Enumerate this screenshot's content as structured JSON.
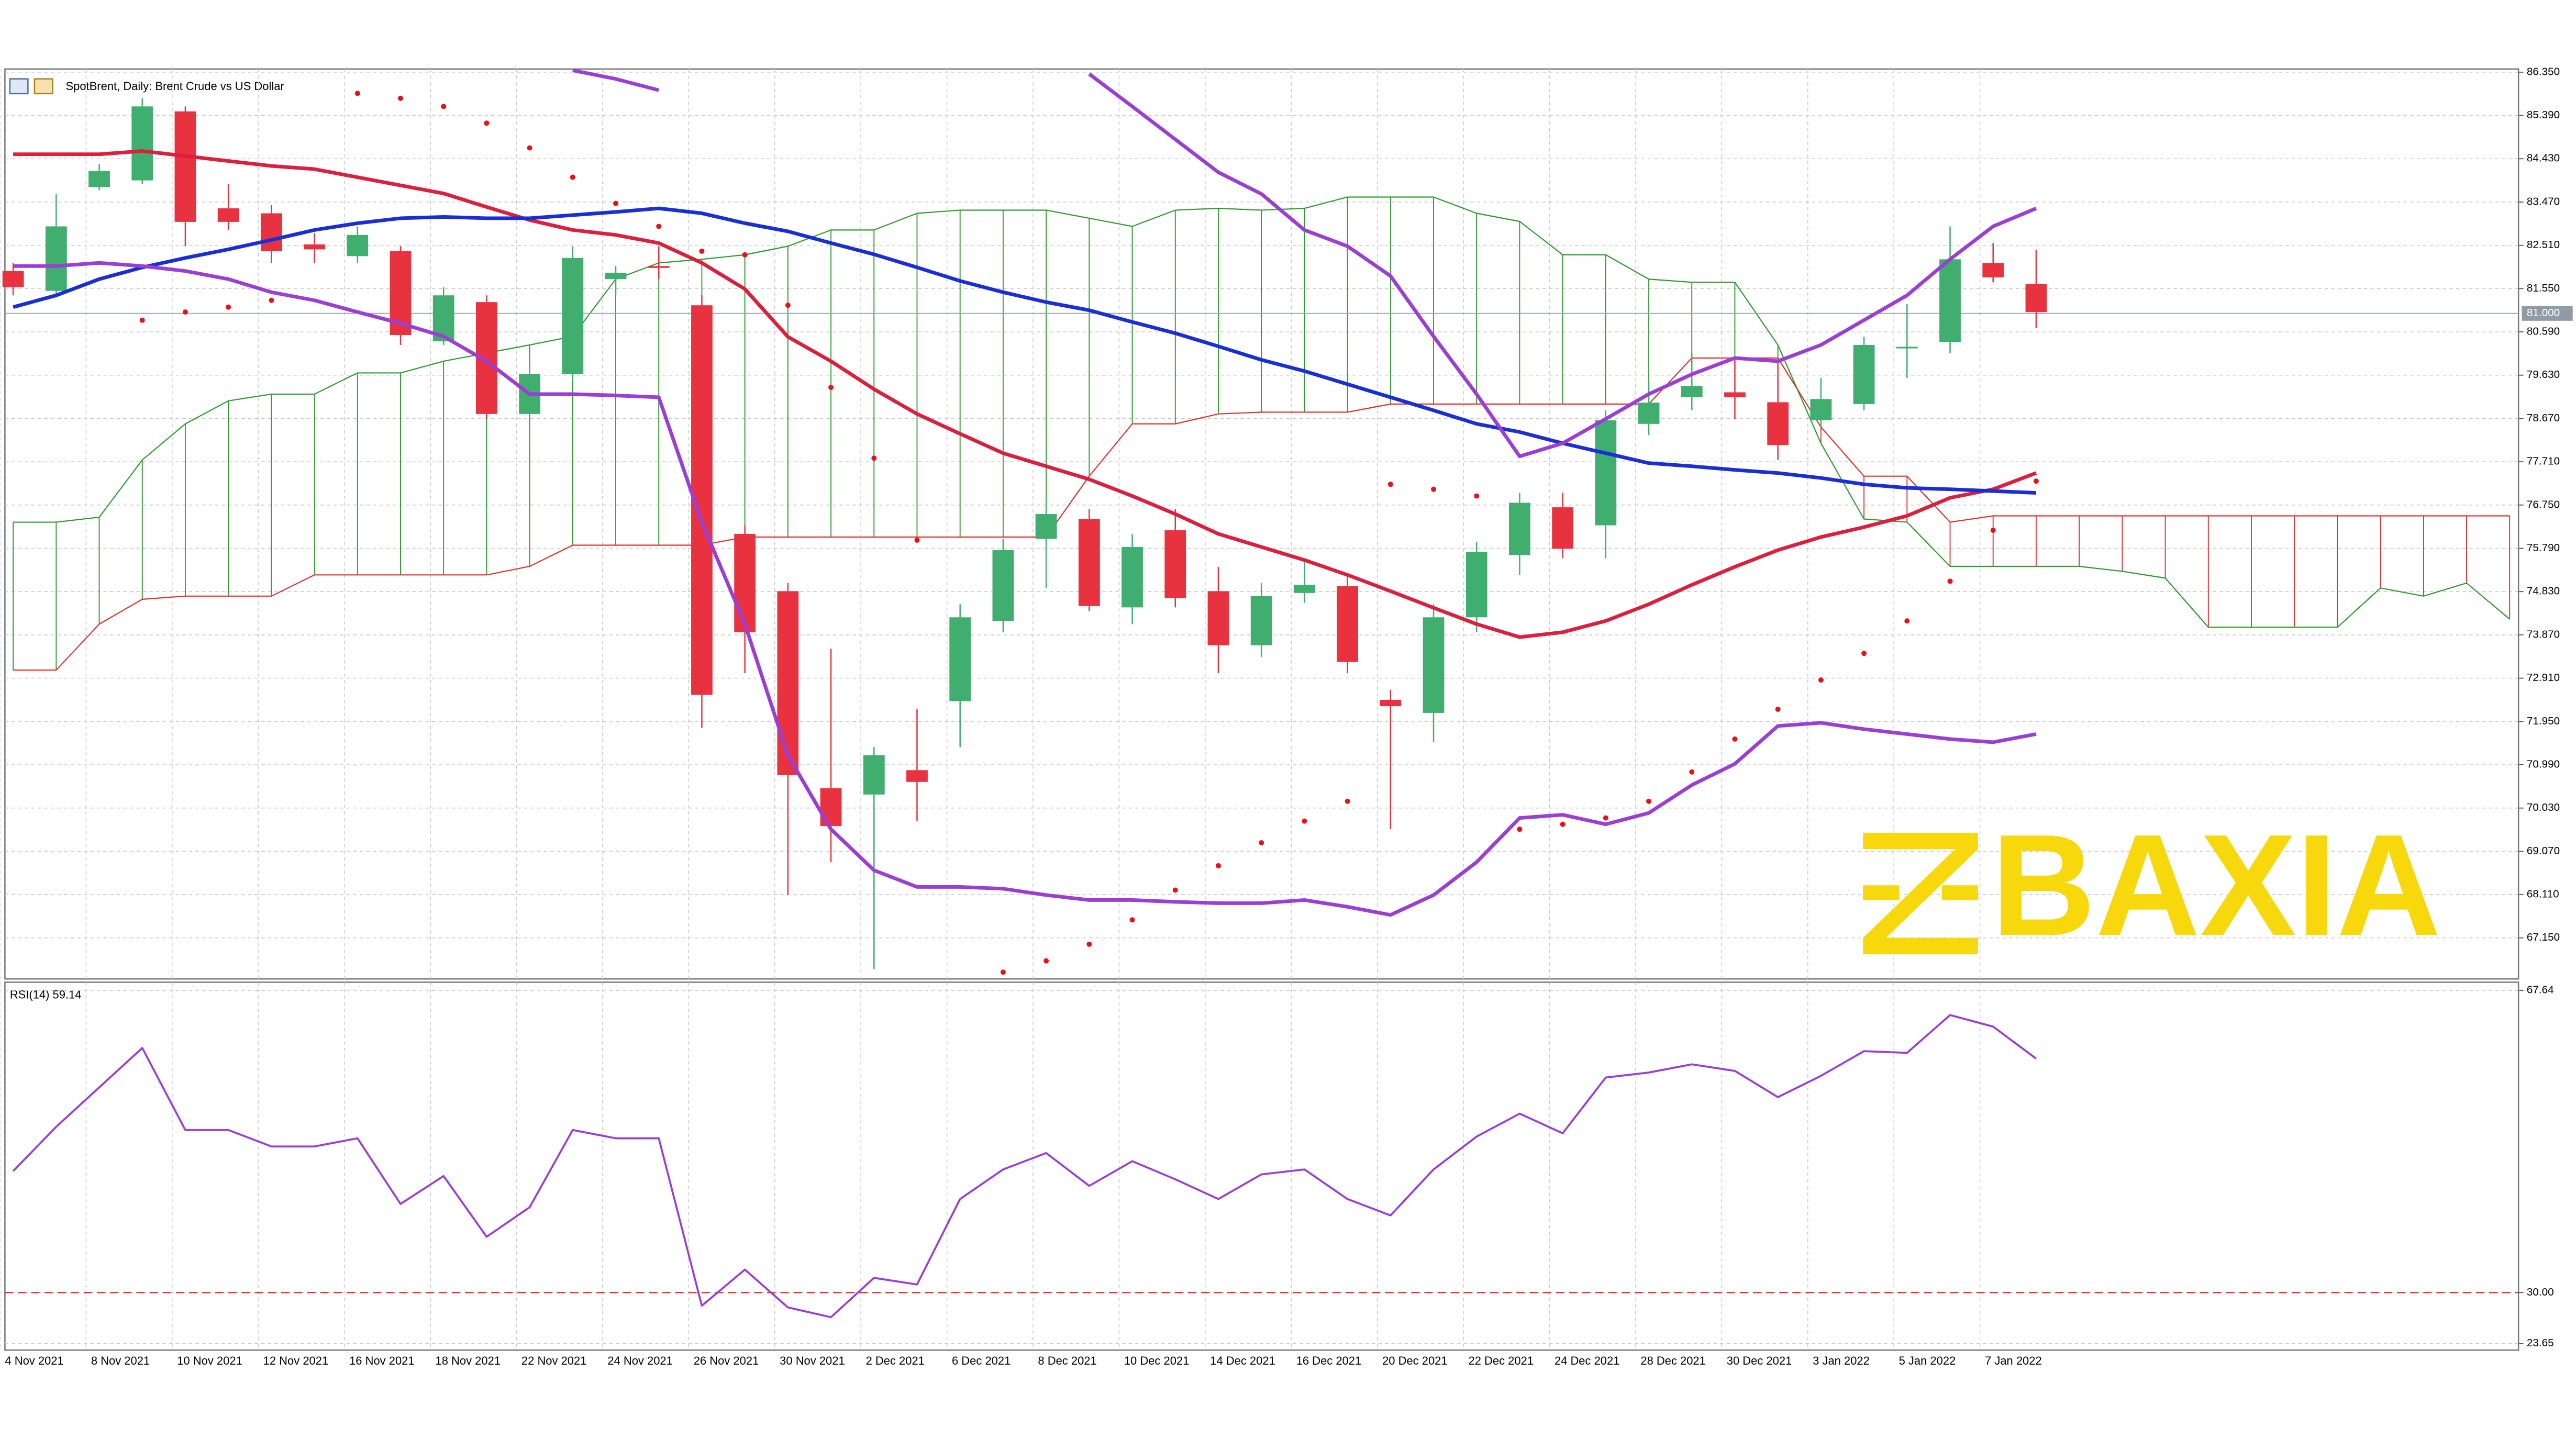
{
  "chart_data": [
    {
      "type": "candlestick",
      "title": "SpotBrent, Daily:  Brent Crude vs US Dollar",
      "categories": [
        "4 Nov 2021",
        null,
        "8 Nov 2021",
        null,
        "10 Nov 2021",
        null,
        "12 Nov 2021",
        null,
        "16 Nov 2021",
        null,
        "18 Nov 2021",
        null,
        "22 Nov 2021",
        null,
        "24 Nov 2021",
        null,
        "26 Nov 2021",
        null,
        "30 Nov 2021",
        null,
        "2 Dec 2021",
        null,
        "6 Dec 2021",
        null,
        "8 Dec 2021",
        null,
        "10 Dec 2021",
        null,
        "14 Dec 2021",
        null,
        "16 Dec 2021",
        null,
        "20 Dec 2021",
        null,
        "22 Dec 2021",
        null,
        "24 Dec 2021",
        null,
        "28 Dec 2021",
        null,
        "30 Dec 2021",
        null,
        "3 Jan 2022",
        null,
        "5 Jan 2022",
        null,
        "7 Jan 2022",
        null,
        null,
        null,
        null,
        null,
        null,
        null,
        null,
        null,
        null,
        null,
        null
      ],
      "open": [
        81.94,
        81.5,
        83.8,
        83.95,
        85.48,
        83.33,
        83.22,
        82.53,
        82.27,
        82.38,
        80.38,
        81.25,
        78.77,
        79.65,
        81.76,
        82.05,
        81.18,
        76.11,
        74.84,
        70.47,
        70.33,
        70.87,
        72.4,
        74.18,
        76.0,
        76.44,
        74.48,
        76.19,
        74.84,
        73.64,
        74.8,
        74.95,
        72.43,
        72.14,
        74.26,
        75.64,
        76.7,
        76.3,
        78.55,
        79.14,
        79.25,
        79.03,
        78.63,
        78.99,
        80.23,
        80.37,
        82.12,
        81.65,
        null,
        null,
        null,
        null,
        null,
        null,
        null,
        null,
        null,
        null,
        null
      ],
      "high": [
        82.12,
        83.65,
        84.31,
        85.77,
        85.59,
        83.87,
        83.4,
        82.78,
        82.93,
        82.49,
        81.58,
        81.4,
        79.94,
        82.49,
        82.05,
        82.49,
        81.4,
        76.3,
        75.02,
        73.56,
        71.38,
        72.22,
        74.55,
        76.0,
        76.84,
        76.66,
        76.11,
        76.66,
        75.38,
        75.02,
        75.57,
        75.2,
        72.65,
        74.55,
        75.93,
        77.02,
        77.02,
        78.85,
        79.5,
        80.12,
        80.01,
        80.01,
        79.57,
        80.48,
        81.21,
        82.93,
        82.56,
        82.41,
        null,
        null,
        null,
        null,
        null,
        null,
        null,
        null,
        null,
        null,
        null
      ],
      "low": [
        81.4,
        81.4,
        83.73,
        83.87,
        82.49,
        82.85,
        82.12,
        82.12,
        82.12,
        80.3,
        80.3,
        78.66,
        78.66,
        79.5,
        81.4,
        81.76,
        71.81,
        73.02,
        68.1,
        68.83,
        66.46,
        69.74,
        71.38,
        73.93,
        74.91,
        74.4,
        74.11,
        74.48,
        73.02,
        73.38,
        74.58,
        73.02,
        69.56,
        71.49,
        73.93,
        75.2,
        75.57,
        75.57,
        78.3,
        78.85,
        78.66,
        77.75,
        78.48,
        78.85,
        79.57,
        80.12,
        81.69,
        80.67,
        null,
        null,
        null,
        null,
        null,
        null,
        null,
        null,
        null,
        null,
        null
      ],
      "close": [
        81.58,
        82.93,
        84.16,
        85.59,
        83.03,
        83.03,
        82.38,
        82.42,
        82.74,
        80.52,
        81.4,
        78.77,
        79.65,
        82.23,
        81.9,
        82.01,
        72.54,
        73.93,
        70.76,
        69.63,
        71.2,
        70.61,
        74.26,
        75.75,
        76.55,
        74.51,
        75.82,
        74.69,
        73.64,
        74.73,
        74.98,
        73.27,
        72.29,
        74.26,
        75.71,
        76.8,
        75.78,
        78.63,
        79.02,
        79.39,
        79.14,
        78.08,
        79.1,
        80.3,
        80.26,
        82.2,
        81.8,
        81.03,
        null,
        null,
        null,
        null,
        null,
        null,
        null,
        null,
        null,
        null,
        null
      ],
      "up_color": "#3fae6e",
      "down_color": "#e8323f",
      "cloud": {
        "up_color": "#2e9a2e",
        "down_color": "#e03030",
        "span_a": [
          76.37,
          76.37,
          76.48,
          77.75,
          78.55,
          79.06,
          79.21,
          79.21,
          79.68,
          79.68,
          79.94,
          80.12,
          80.3,
          80.49,
          81.76,
          82.12,
          82.2,
          82.3,
          82.49,
          82.85,
          82.85,
          83.22,
          83.29,
          83.29,
          83.29,
          83.11,
          82.93,
          83.29,
          83.33,
          83.29,
          83.33,
          83.58,
          83.58,
          83.58,
          83.22,
          83.04,
          82.3,
          82.3,
          81.76,
          81.69,
          81.69,
          80.3,
          78.12,
          76.44,
          76.37,
          75.39,
          75.39,
          75.39,
          75.39,
          75.28,
          75.13,
          74.04,
          74.04,
          74.04,
          74.04,
          74.91,
          74.73,
          75.02,
          74.22
        ],
        "span_b": [
          73.09,
          73.09,
          74.11,
          74.66,
          74.73,
          74.73,
          74.73,
          75.2,
          75.2,
          75.2,
          75.2,
          75.2,
          75.39,
          75.86,
          75.86,
          75.86,
          75.86,
          76.04,
          76.04,
          76.04,
          76.04,
          76.04,
          76.04,
          76.04,
          76.04,
          77.39,
          78.55,
          78.55,
          78.77,
          78.81,
          78.81,
          78.81,
          78.99,
          78.99,
          78.99,
          78.99,
          78.99,
          78.99,
          78.99,
          80.01,
          80.01,
          80.01,
          78.48,
          77.39,
          77.39,
          76.37,
          76.51,
          76.51,
          76.51,
          76.51,
          76.51,
          76.51,
          76.51,
          76.51,
          76.51,
          76.51,
          76.51,
          76.51,
          76.51
        ]
      },
      "series": [
        {
          "style": "line",
          "color": "#dc1f3c",
          "values": [
            84.53,
            84.53,
            84.53,
            84.6,
            84.49,
            84.38,
            84.27,
            84.2,
            84.02,
            83.84,
            83.66,
            83.36,
            83.07,
            82.85,
            82.74,
            82.56,
            82.12,
            81.54,
            80.48,
            79.94,
            79.32,
            78.77,
            78.33,
            77.9,
            77.61,
            77.32,
            76.95,
            76.55,
            76.11,
            75.82,
            75.53,
            75.2,
            74.84,
            74.47,
            74.11,
            73.82,
            73.93,
            74.18,
            74.55,
            74.98,
            75.38,
            75.75,
            76.04,
            76.26,
            76.51,
            76.91,
            77.1,
            77.46,
            null,
            null,
            null,
            null,
            null,
            null,
            null,
            null,
            null,
            null,
            null
          ]
        },
        {
          "style": "line",
          "color": "#1a2ed6",
          "values": [
            81.14,
            81.4,
            81.76,
            82.02,
            82.23,
            82.42,
            82.63,
            82.85,
            83.0,
            83.11,
            83.14,
            83.11,
            83.11,
            83.18,
            83.25,
            83.33,
            83.22,
            83.0,
            82.82,
            82.56,
            82.31,
            82.02,
            81.72,
            81.47,
            81.25,
            81.07,
            80.81,
            80.56,
            80.27,
            79.97,
            79.72,
            79.43,
            79.14,
            78.85,
            78.55,
            78.37,
            78.12,
            77.9,
            77.68,
            77.61,
            77.53,
            77.46,
            77.35,
            77.21,
            77.13,
            77.1,
            77.06,
            77.02,
            null,
            null,
            null,
            null,
            null,
            null,
            null,
            null,
            null,
            null,
            null
          ]
        },
        {
          "style": "line",
          "color": "#9b3fd4",
          "values": [
            null,
            null,
            null,
            null,
            null,
            null,
            null,
            null,
            null,
            null,
            null,
            null,
            null,
            86.39,
            86.2,
            85.95,
            null,
            null,
            null,
            null,
            null,
            null,
            null,
            null,
            null,
            86.31,
            85.59,
            84.86,
            84.13,
            83.65,
            82.85,
            82.49,
            81.83,
            80.49,
            79.21,
            77.83,
            78.12,
            78.66,
            79.21,
            79.65,
            80.01,
            79.94,
            80.3,
            80.85,
            81.4,
            82.2,
            82.93,
            83.33,
            null,
            null,
            null,
            null,
            null,
            null,
            null,
            null,
            null,
            null,
            null
          ]
        },
        {
          "style": "line",
          "color": "#9b3fd4",
          "values": [
            82.05,
            82.05,
            82.12,
            82.05,
            81.94,
            81.76,
            81.47,
            81.29,
            81.03,
            80.78,
            80.49,
            79.94,
            79.21,
            79.21,
            79.18,
            79.14,
            76.37,
            74.11,
            71.2,
            69.56,
            68.65,
            68.28,
            68.28,
            68.24,
            68.1,
            67.99,
            67.99,
            67.95,
            67.92,
            67.92,
            67.99,
            67.84,
            67.66,
            68.1,
            68.83,
            69.81,
            69.88,
            69.67,
            69.92,
            70.54,
            71.01,
            71.85,
            71.92,
            71.78,
            71.67,
            71.56,
            71.49,
            71.67,
            null,
            null,
            null,
            null,
            null,
            null,
            null,
            null,
            null,
            null,
            null
          ]
        },
        {
          "style": "dots",
          "color": "#e8101a",
          "values": [
            null,
            null,
            null,
            80.85,
            81.03,
            81.14,
            81.29,
            null,
            85.88,
            85.77,
            85.59,
            85.22,
            84.67,
            84.02,
            83.44,
            82.93,
            82.38,
            82.3,
            81.18,
            79.36,
            77.79,
            75.97,
            null,
            66.39,
            66.64,
            67.01,
            67.55,
            68.21,
            68.75,
            69.26,
            69.74,
            70.18,
            77.21,
            77.1,
            76.95,
            69.56,
            69.67,
            69.81,
            70.18,
            70.83,
            71.56,
            72.22,
            72.87,
            73.46,
            74.18,
            75.06,
            76.19,
            77.28,
            null,
            null,
            null,
            null,
            null,
            null,
            null,
            null,
            null,
            null,
            null
          ]
        }
      ],
      "price_line": {
        "value": 81,
        "label": "81.000"
      },
      "ylim": [
        66.24,
        86.42
      ],
      "yticks": [
        {
          "value": 86.35,
          "label": "86.350"
        },
        {
          "value": 85.39,
          "label": "85.390"
        },
        {
          "value": 84.43,
          "label": "84.430"
        },
        {
          "value": 83.47,
          "label": "83.470"
        },
        {
          "value": 82.51,
          "label": "82.510"
        },
        {
          "value": 81.55,
          "label": "81.550"
        },
        {
          "value": 80.59,
          "label": "80.590"
        },
        {
          "value": 79.63,
          "label": "79.630"
        },
        {
          "value": 78.67,
          "label": "78.670"
        },
        {
          "value": 77.71,
          "label": "77.710"
        },
        {
          "value": 76.75,
          "label": "76.750"
        },
        {
          "value": 75.79,
          "label": "75.790"
        },
        {
          "value": 74.83,
          "label": "74.830"
        },
        {
          "value": 73.87,
          "label": "73.870"
        },
        {
          "value": 72.91,
          "label": "72.910"
        },
        {
          "value": 71.95,
          "label": "71.950"
        },
        {
          "value": 70.99,
          "label": "70.990"
        },
        {
          "value": 70.03,
          "label": "70.030"
        },
        {
          "value": 69.07,
          "label": "69.070"
        },
        {
          "value": 68.11,
          "label": "68.110"
        },
        {
          "value": 67.15,
          "label": "67.150"
        }
      ],
      "grid": true
    },
    {
      "type": "line",
      "title": "RSI(14) 59.14",
      "color": "#9b3fd4",
      "values": [
        45.13,
        50.65,
        55.56,
        60.47,
        50.25,
        50.25,
        48.2,
        48.2,
        49.22,
        41.04,
        44.52,
        36.95,
        40.63,
        50.25,
        49.22,
        49.22,
        28.36,
        32.86,
        28.15,
        26.93,
        31.83,
        31.01,
        41.65,
        45.34,
        47.38,
        43.29,
        46.36,
        44.11,
        41.65,
        44.72,
        45.34,
        41.65,
        39.61,
        45.34,
        49.43,
        52.29,
        49.84,
        56.79,
        57.41,
        58.43,
        57.61,
        54.34,
        57.0,
        60.07,
        59.86,
        64.57,
        63.13,
        59.14,
        null,
        null,
        null,
        null,
        null,
        null,
        null,
        null,
        null,
        null,
        null
      ],
      "level": 30,
      "level_color": "#e03030",
      "ylim": [
        22.83,
        68.66
      ],
      "yticks": [
        67.64,
        {
          "value": 30,
          "label": "30.00"
        },
        23.65
      ],
      "grid": true
    }
  ],
  "watermark": "BAXIA"
}
